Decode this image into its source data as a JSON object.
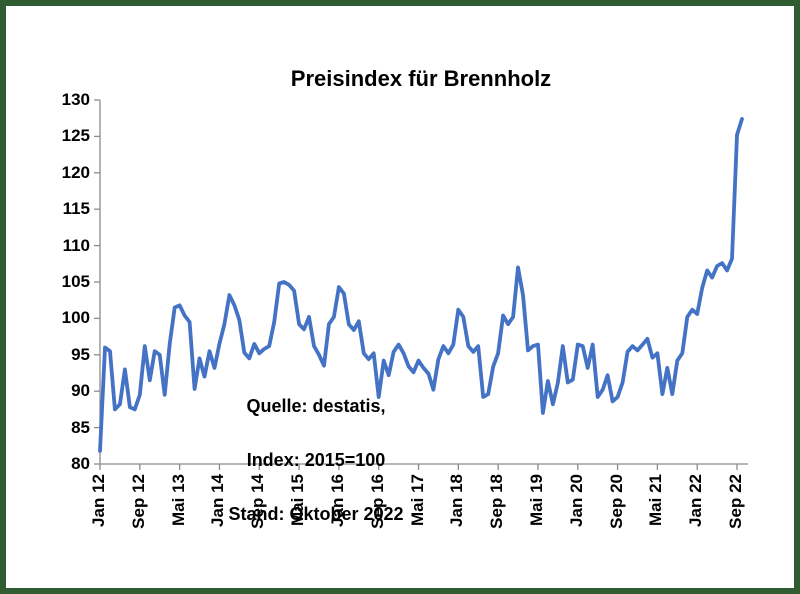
{
  "chart_data": {
    "type": "line",
    "title": "Preisindex für Brennholz",
    "annotation": [
      "Quelle: destatis,",
      "Index: 2015=100",
      "Stand: Oktober  2022"
    ],
    "xlabel": "",
    "ylabel": "",
    "grid": false,
    "legend": false,
    "ylim": [
      80,
      130
    ],
    "ytick_step": 5,
    "x_tick_interval": 8,
    "x_tick_labels": [
      "Jan 12",
      "Sep 12",
      "Mai 13",
      "Jan 14",
      "Sep 14",
      "Mai 15",
      "Jan 16",
      "Sep 16",
      "Mai 17",
      "Jan 18",
      "Sep 18",
      "Mai 19",
      "Jan 20",
      "Sep 20",
      "Mai 21",
      "Jan 22",
      "Sep 22"
    ],
    "x": [
      "Jan 12",
      "Feb 12",
      "Mrz 12",
      "Apr 12",
      "Mai 12",
      "Jun 12",
      "Jul 12",
      "Aug 12",
      "Sep 12",
      "Okt 12",
      "Nov 12",
      "Dez 12",
      "Jan 13",
      "Feb 13",
      "Mrz 13",
      "Apr 13",
      "Mai 13",
      "Jun 13",
      "Jul 13",
      "Aug 13",
      "Sep 13",
      "Okt 13",
      "Nov 13",
      "Dez 13",
      "Jan 14",
      "Feb 14",
      "Mrz 14",
      "Apr 14",
      "Mai 14",
      "Jun 14",
      "Jul 14",
      "Aug 14",
      "Sep 14",
      "Okt 14",
      "Nov 14",
      "Dez 14",
      "Jan 15",
      "Feb 15",
      "Mrz 15",
      "Apr 15",
      "Mai 15",
      "Jun 15",
      "Jul 15",
      "Aug 15",
      "Sep 15",
      "Okt 15",
      "Nov 15",
      "Dez 15",
      "Jan 16",
      "Feb 16",
      "Mrz 16",
      "Apr 16",
      "Mai 16",
      "Jun 16",
      "Jul 16",
      "Aug 16",
      "Sep 16",
      "Okt 16",
      "Nov 16",
      "Dez 16",
      "Jan 17",
      "Feb 17",
      "Mrz 17",
      "Apr 17",
      "Mai 17",
      "Jun 17",
      "Jul 17",
      "Aug 17",
      "Sep 17",
      "Okt 17",
      "Nov 17",
      "Dez 17",
      "Jan 18",
      "Feb 18",
      "Mrz 18",
      "Apr 18",
      "Mai 18",
      "Jun 18",
      "Jul 18",
      "Aug 18",
      "Sep 18",
      "Okt 18",
      "Nov 18",
      "Dez 18",
      "Jan 19",
      "Feb 19",
      "Mrz 19",
      "Apr 19",
      "Mai 19",
      "Jun 19",
      "Jul 19",
      "Aug 19",
      "Sep 19",
      "Okt 19",
      "Nov 19",
      "Dez 19",
      "Jan 20",
      "Feb 20",
      "Mrz 20",
      "Apr 20",
      "Mai 20",
      "Jun 20",
      "Jul 20",
      "Aug 20",
      "Sep 20",
      "Okt 20",
      "Nov 20",
      "Dez 20",
      "Jan 21",
      "Feb 21",
      "Mrz 21",
      "Apr 21",
      "Mai 21",
      "Jun 21",
      "Jul 21",
      "Aug 21",
      "Sep 21",
      "Okt 21",
      "Nov 21",
      "Dez 21",
      "Jan 22",
      "Feb 22",
      "Mrz 22",
      "Apr 22",
      "Mai 22",
      "Jun 22",
      "Jul 22",
      "Aug 22",
      "Sep 22",
      "Okt 22"
    ],
    "values": [
      81.8,
      96.0,
      95.5,
      87.5,
      88.2,
      93.0,
      87.8,
      87.5,
      89.5,
      96.2,
      91.5,
      95.5,
      95.0,
      89.5,
      96.5,
      101.5,
      101.8,
      100.4,
      99.5,
      90.3,
      94.5,
      92.0,
      95.5,
      93.2,
      96.5,
      99.2,
      103.2,
      101.8,
      99.8,
      95.3,
      94.5,
      96.5,
      95.2,
      95.8,
      96.2,
      99.5,
      104.8,
      105.0,
      104.6,
      103.8,
      99.2,
      98.5,
      100.2,
      96.2,
      95.0,
      93.5,
      99.2,
      100.2,
      104.3,
      103.4,
      99.2,
      98.4,
      99.6,
      95.2,
      94.4,
      95.2,
      89.2,
      94.2,
      92.2,
      95.4,
      96.4,
      95.2,
      93.4,
      92.6,
      94.2,
      93.2,
      92.4,
      90.2,
      94.4,
      96.2,
      95.2,
      96.4,
      101.2,
      100.2,
      96.2,
      95.4,
      96.2,
      89.2,
      89.6,
      93.4,
      95.2,
      100.4,
      99.2,
      100.2,
      107.0,
      103.2,
      95.6,
      96.2,
      96.4,
      87.0,
      91.4,
      88.2,
      91.2,
      96.2,
      91.2,
      91.6,
      96.4,
      96.2,
      93.2,
      96.4,
      89.2,
      90.2,
      92.2,
      88.6,
      89.2,
      91.2,
      95.4,
      96.2,
      95.6,
      96.4,
      97.2,
      94.6,
      95.2,
      89.6,
      93.2,
      89.6,
      94.2,
      95.2,
      100.2,
      101.2,
      100.6,
      104.2,
      106.6,
      105.6,
      107.2,
      107.6,
      106.6,
      108.2,
      125.2,
      127.4
    ],
    "style": {
      "line_color": "#4472C4",
      "axis_color": "#8c8c8c",
      "frame_color": "#2f5d31"
    }
  }
}
